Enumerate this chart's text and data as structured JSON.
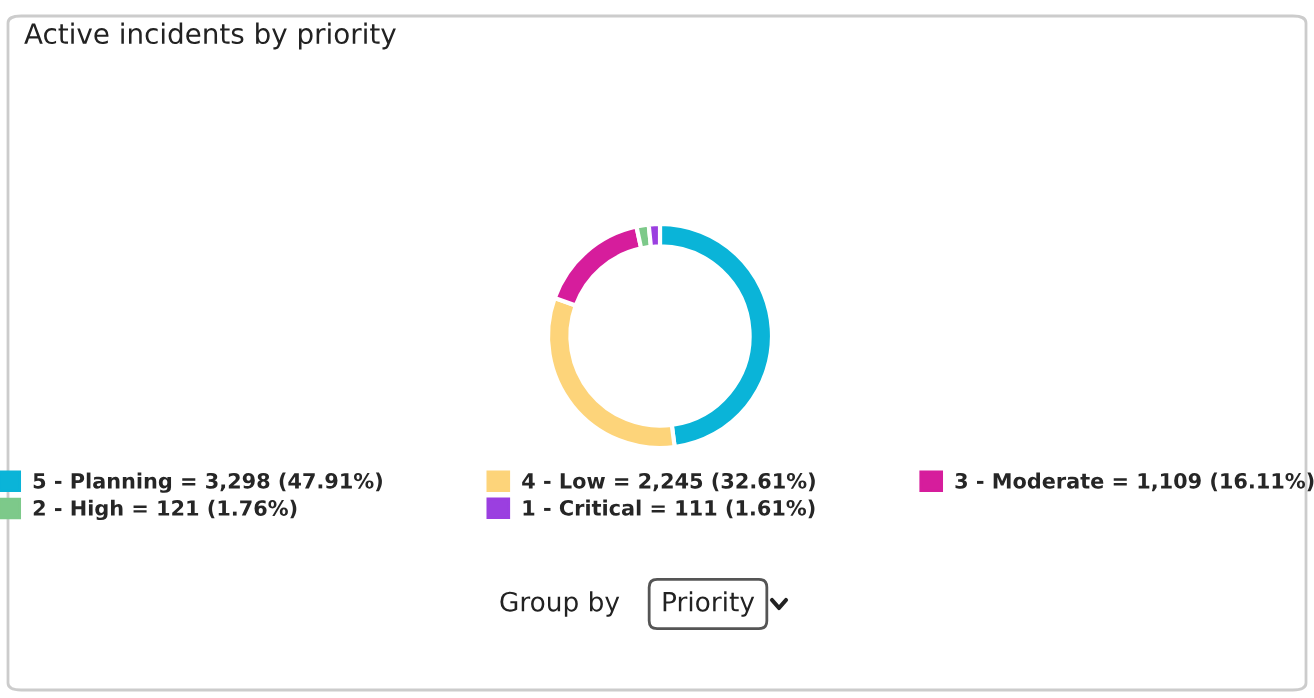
{
  "chart_data": {
    "type": "donut",
    "title": "Active incidents by priority",
    "categories": [
      "5 - Planning = 3,298 (47.91%)",
      "4 - Low = 2,245 (32.61%)",
      "3 - Moderate = 1,109 (16.11%)",
      "2 - High = 121 (1.76%)",
      "1 - Critical = 111 (1.61%)"
    ],
    "values": [
      3298,
      2245,
      1109,
      121,
      111
    ],
    "colors": [
      "#0ab4d8",
      "#fdd47a",
      "#d61d9c",
      "#7dc98a",
      "#9b3fe0"
    ],
    "legend": "bottom",
    "annotations": [
      "Group by",
      "Priority"
    ]
  }
}
